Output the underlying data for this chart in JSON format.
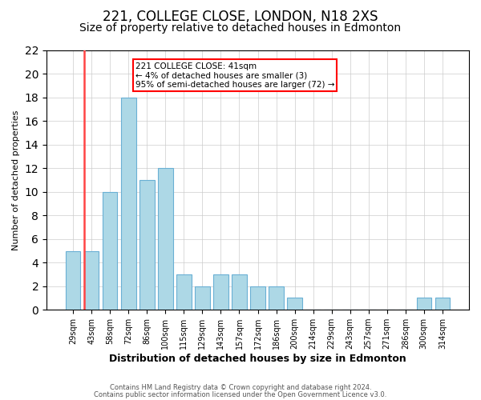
{
  "title": "221, COLLEGE CLOSE, LONDON, N18 2XS",
  "subtitle": "Size of property relative to detached houses in Edmonton",
  "xlabel": "Distribution of detached houses by size in Edmonton",
  "ylabel": "Number of detached properties",
  "bar_labels": [
    "29sqm",
    "43sqm",
    "58sqm",
    "72sqm",
    "86sqm",
    "100sqm",
    "115sqm",
    "129sqm",
    "143sqm",
    "157sqm",
    "172sqm",
    "186sqm",
    "200sqm",
    "214sqm",
    "229sqm",
    "243sqm",
    "257sqm",
    "271sqm",
    "286sqm",
    "300sqm",
    "314sqm"
  ],
  "bar_values": [
    5,
    5,
    10,
    18,
    11,
    12,
    3,
    2,
    3,
    3,
    2,
    2,
    1,
    0,
    0,
    0,
    0,
    0,
    0,
    1,
    1
  ],
  "bar_color": "#add8e6",
  "bar_edge_color": "#6ab0d4",
  "highlight_bar_index": 1,
  "highlight_color": "#ff4444",
  "annotation_line1": "221 COLLEGE CLOSE: 41sqm",
  "annotation_line2": "← 4% of detached houses are smaller (3)",
  "annotation_line3": "95% of semi-detached houses are larger (72) →",
  "ylim": [
    0,
    22
  ],
  "yticks": [
    0,
    2,
    4,
    6,
    8,
    10,
    12,
    14,
    16,
    18,
    20,
    22
  ],
  "footer1": "Contains HM Land Registry data © Crown copyright and database right 2024.",
  "footer2": "Contains public sector information licensed under the Open Government Licence v3.0.",
  "title_fontsize": 12,
  "subtitle_fontsize": 10,
  "background_color": "#ffffff",
  "grid_color": "#cccccc"
}
